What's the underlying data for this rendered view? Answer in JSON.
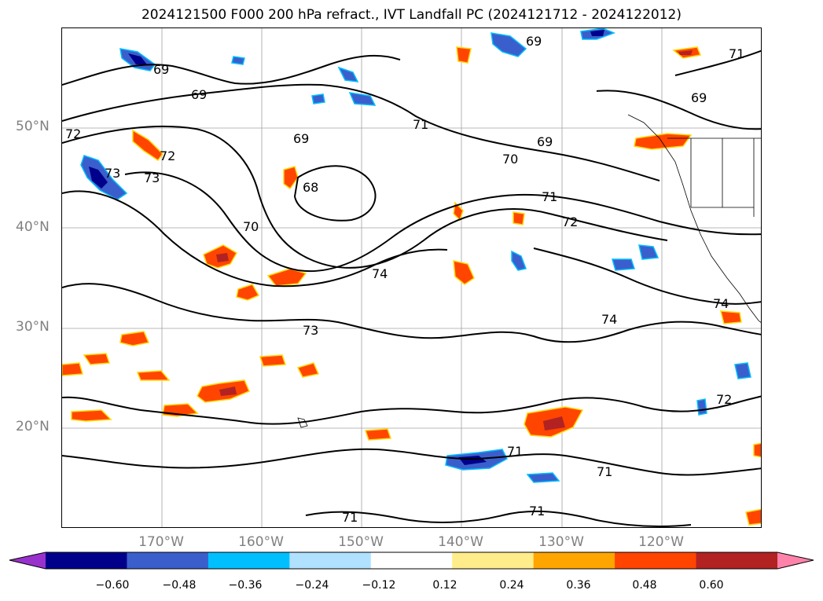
{
  "title": "2024121500 F000 200 hPa refract., IVT Landfall PC (2024121712 - 2024122012)",
  "axes": {
    "lat_labels": [
      "50°N",
      "40°N",
      "30°N",
      "20°N"
    ],
    "lon_labels": [
      "170°W",
      "160°W",
      "150°W",
      "140°W",
      "130°W",
      "120°W"
    ]
  },
  "contour_labels": [
    "69",
    "69",
    "69",
    "71",
    "69",
    "69",
    "72",
    "73",
    "73",
    "72",
    "69",
    "68",
    "70",
    "70",
    "71",
    "72",
    "74",
    "73",
    "74",
    "71",
    "71",
    "71",
    "71",
    "72",
    "74",
    "71"
  ],
  "colorbar": {
    "tick_labels": [
      "−0.60",
      "−0.48",
      "−0.36",
      "−0.24",
      "−0.12",
      "0.12",
      "0.24",
      "0.36",
      "0.48",
      "0.60"
    ],
    "colors": [
      "#9932cc",
      "#00008b",
      "#3a5fcd",
      "#00bfff",
      "#b0e2ff",
      "#ffffff",
      "#ffec8b",
      "#ffa500",
      "#ff4500",
      "#b22222",
      "#ff82ab"
    ]
  },
  "colors": {
    "contour": "#000000",
    "grid": "#a0a0a0",
    "axis_label": "#808080"
  }
}
